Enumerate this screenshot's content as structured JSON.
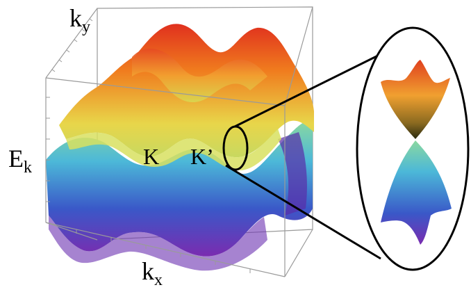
{
  "labels": {
    "ky": {
      "main": "k",
      "sub": "y"
    },
    "kx": {
      "main": "k",
      "sub": "x"
    },
    "ek": {
      "main": "E",
      "sub": "k"
    },
    "k_point": "K",
    "k_prime_point": "K’"
  },
  "colors": {
    "red": "#e0301e",
    "orange": "#f07c1e",
    "yellow": "#e8d64a",
    "green": "#6cc8a0",
    "cyan": "#4cb8d8",
    "blue": "#3a58c8",
    "purple": "#7a2cb0",
    "frame": "#9a9a9a",
    "outline": "#000000"
  },
  "diagram": {
    "type": "band-structure-3d",
    "inset": "zoom-on-dirac-cone"
  }
}
